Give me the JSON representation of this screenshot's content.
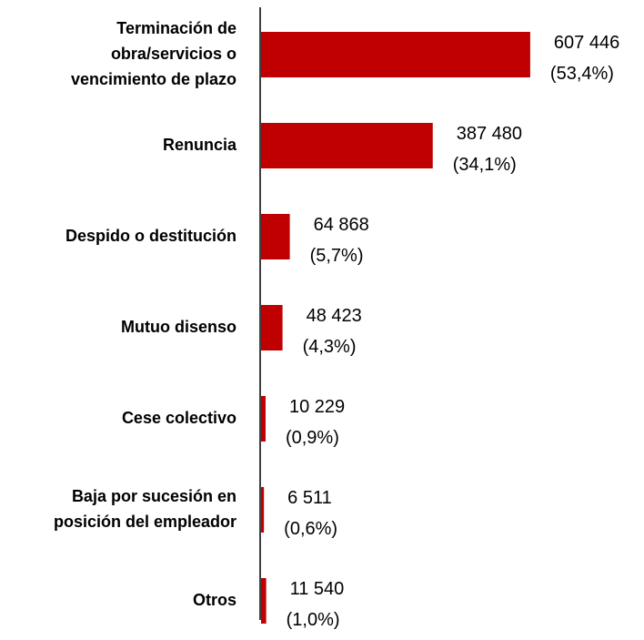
{
  "chart_data": {
    "type": "hbar",
    "categories": [
      "Terminación de\nobra/servicios o\nvencimiento de plazo",
      "Renuncia",
      "Despido o destitución",
      "Mutuo disenso",
      "Cese colectivo",
      "Baja por sucesión en\nposición del empleador",
      "Otros"
    ],
    "values": [
      607446,
      387480,
      64868,
      48423,
      10229,
      6511,
      11540
    ],
    "value_labels": [
      "607 446",
      "387 480",
      "64 868",
      "48 423",
      "10 229",
      "6 511",
      "11 540"
    ],
    "shares": [
      53.4,
      34.1,
      5.7,
      4.3,
      0.9,
      0.6,
      1.0
    ],
    "share_labels": [
      "(53,4%)",
      "(34,1%)",
      "(5,7%)",
      "(4,3%)",
      "(0,9%)",
      "(0,6%)",
      "(1,0%)"
    ],
    "color": "#c00000",
    "xlim": [
      0,
      700000
    ]
  }
}
